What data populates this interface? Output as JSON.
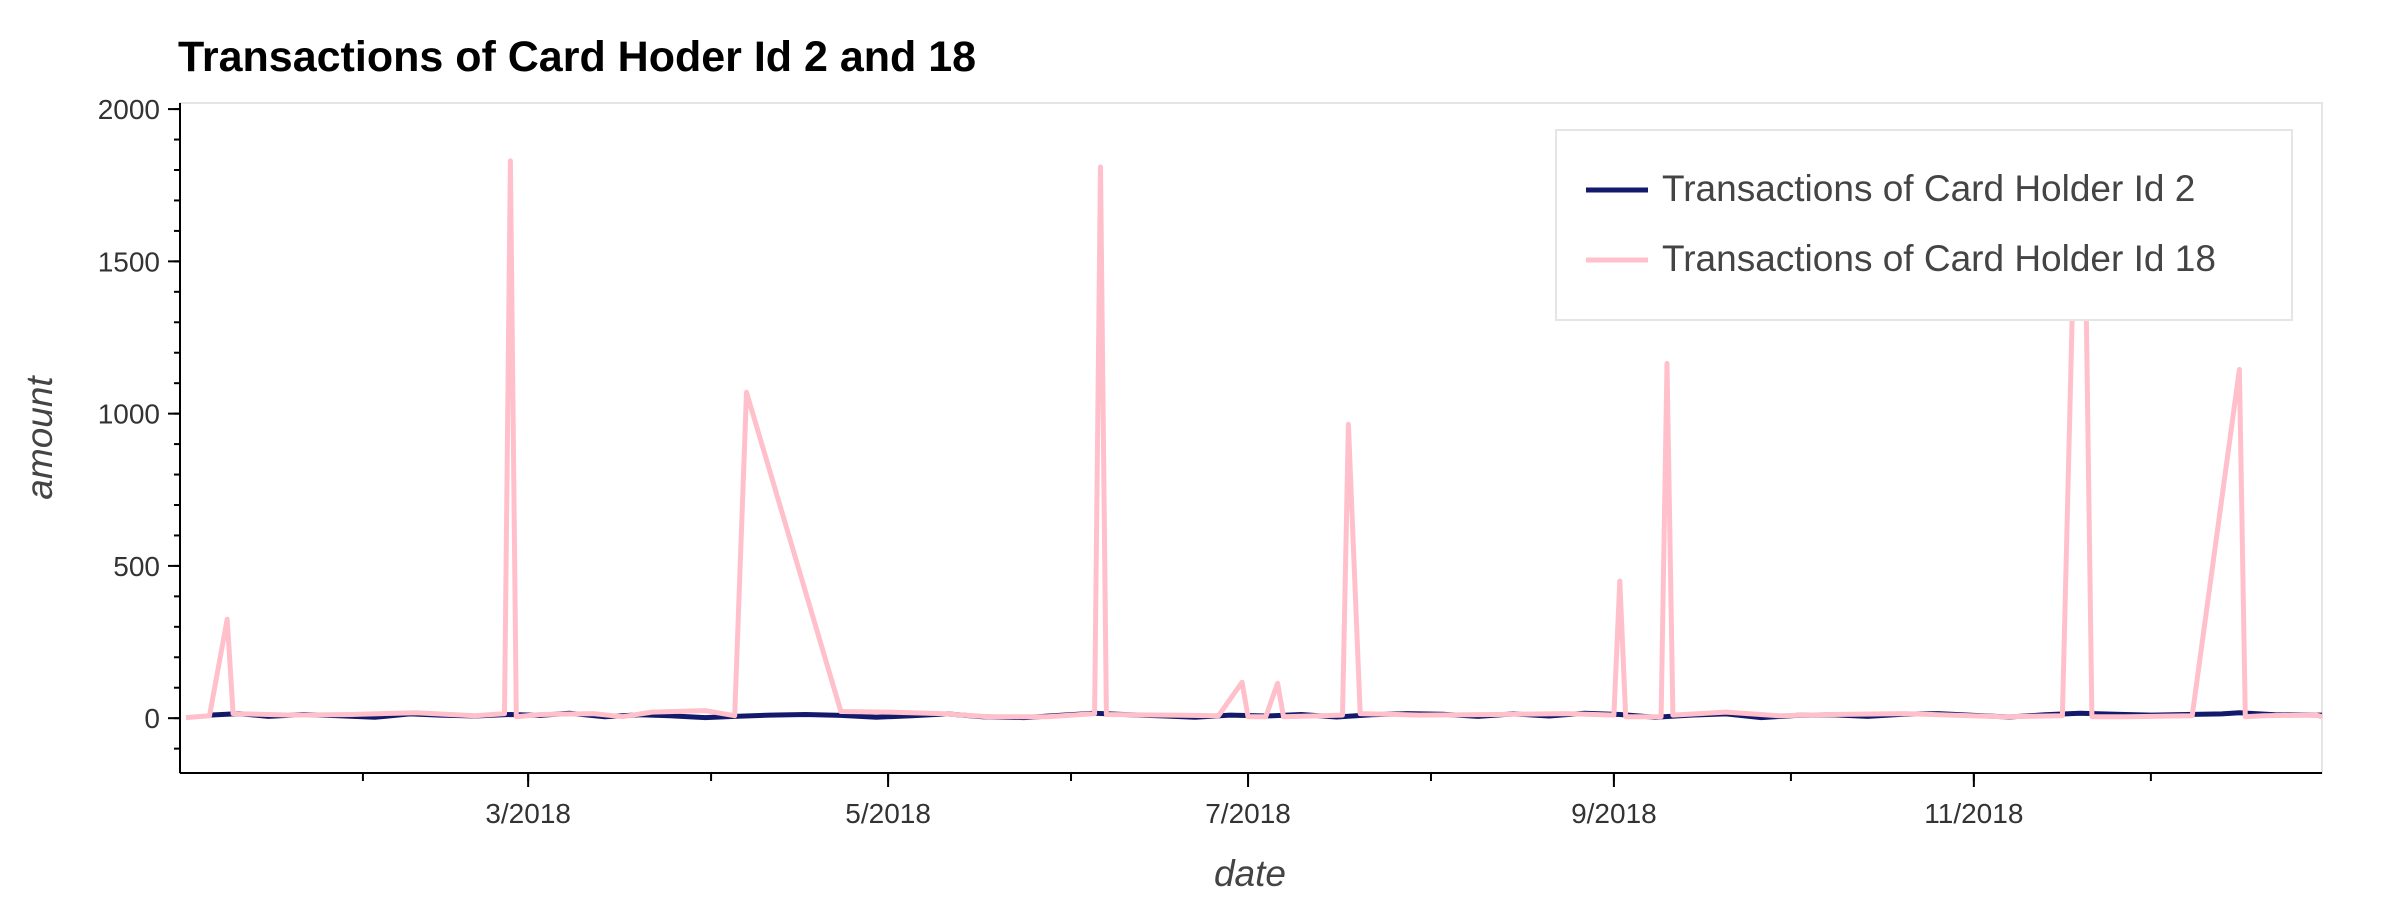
{
  "chart_data": {
    "type": "line",
    "title": "Transactions of Card Hoder Id 2 and 18",
    "xlabel": "date",
    "ylabel": "amount",
    "x_type": "datetime",
    "xlim": [
      "2018-01-01",
      "2018-12-30"
    ],
    "ylim": [
      -180,
      2020
    ],
    "y_ticks": [
      0,
      500,
      1000,
      1500,
      2000
    ],
    "y_tick_labels": [
      "0",
      "500",
      "1000",
      "1500",
      "2000"
    ],
    "x_ticks": [
      "2018-03-01",
      "2018-05-01",
      "2018-07-01",
      "2018-09-01",
      "2018-11-01"
    ],
    "x_tick_labels": [
      "3/2018",
      "5/2018",
      "7/2018",
      "9/2018",
      "11/2018"
    ],
    "grid": false,
    "legend_position": "top-right",
    "series": [
      {
        "name": "Transactions of Card Holder Id 2",
        "color": "#141a6b",
        "x": [
          "2018-01-06",
          "2018-01-11",
          "2018-01-16",
          "2018-01-22",
          "2018-01-28",
          "2018-02-03",
          "2018-02-09",
          "2018-02-14",
          "2018-02-20",
          "2018-02-26",
          "2018-03-03",
          "2018-03-08",
          "2018-03-14",
          "2018-03-20",
          "2018-03-25",
          "2018-03-31",
          "2018-04-05",
          "2018-04-11",
          "2018-04-17",
          "2018-04-23",
          "2018-04-29",
          "2018-05-05",
          "2018-05-11",
          "2018-05-17",
          "2018-05-24",
          "2018-05-30",
          "2018-06-05",
          "2018-06-11",
          "2018-06-17",
          "2018-06-22",
          "2018-06-28",
          "2018-07-04",
          "2018-07-10",
          "2018-07-16",
          "2018-07-22",
          "2018-07-28",
          "2018-08-03",
          "2018-08-09",
          "2018-08-15",
          "2018-08-21",
          "2018-08-27",
          "2018-09-02",
          "2018-09-08",
          "2018-09-14",
          "2018-09-20",
          "2018-09-26",
          "2018-10-02",
          "2018-10-08",
          "2018-10-14",
          "2018-10-20",
          "2018-10-26",
          "2018-11-01",
          "2018-11-07",
          "2018-11-13",
          "2018-11-19",
          "2018-11-25",
          "2018-12-01",
          "2018-12-07",
          "2018-12-13",
          "2018-12-16",
          "2018-12-22",
          "2018-12-30"
        ],
        "y": [
          10,
          15,
          6,
          12,
          8,
          3,
          14,
          10,
          7,
          12,
          9,
          16,
          5,
          11,
          8,
          2,
          6,
          10,
          12,
          9,
          3,
          8,
          14,
          5,
          2,
          9,
          16,
          11,
          7,
          3,
          10,
          7,
          12,
          4,
          11,
          15,
          13,
          6,
          14,
          7,
          16,
          12,
          3,
          10,
          14,
          2,
          9,
          11,
          6,
          13,
          15,
          9,
          4,
          11,
          16,
          13,
          10,
          12,
          14,
          18,
          11,
          10
        ]
      },
      {
        "name": "Transactions of Card Holder Id 18",
        "color": "#ffc0cb",
        "x": [
          "2018-01-02",
          "2018-01-06",
          "2018-01-09",
          "2018-01-10",
          "2018-01-20",
          "2018-01-30",
          "2018-02-10",
          "2018-02-20",
          "2018-02-25",
          "2018-02-26",
          "2018-02-27",
          "2018-03-03",
          "2018-03-12",
          "2018-03-17",
          "2018-03-22",
          "2018-03-31",
          "2018-04-05",
          "2018-04-07",
          "2018-04-23",
          "2018-05-01",
          "2018-05-10",
          "2018-05-18",
          "2018-05-28",
          "2018-06-05",
          "2018-06-06",
          "2018-06-07",
          "2018-06-18",
          "2018-06-26",
          "2018-06-30",
          "2018-07-01",
          "2018-07-04",
          "2018-07-06",
          "2018-07-07",
          "2018-07-17",
          "2018-07-18",
          "2018-07-20",
          "2018-07-30",
          "2018-08-12",
          "2018-08-24",
          "2018-09-01",
          "2018-09-02",
          "2018-09-03",
          "2018-09-09",
          "2018-09-10",
          "2018-09-11",
          "2018-09-20",
          "2018-09-29",
          "2018-10-08",
          "2018-10-20",
          "2018-10-28",
          "2018-11-06",
          "2018-11-16",
          "2018-11-18",
          "2018-11-20",
          "2018-11-21",
          "2018-11-27",
          "2018-12-08",
          "2018-12-16",
          "2018-12-17",
          "2018-12-20",
          "2018-12-29",
          "2018-12-30"
        ],
        "y": [
          2,
          8,
          325,
          15,
          10,
          12,
          18,
          8,
          15,
          1830,
          5,
          12,
          15,
          5,
          20,
          25,
          8,
          1070,
          22,
          20,
          15,
          5,
          5,
          15,
          1810,
          12,
          10,
          8,
          118,
          5,
          5,
          115,
          5,
          10,
          965,
          15,
          10,
          12,
          15,
          10,
          450,
          5,
          5,
          1165,
          10,
          20,
          8,
          12,
          15,
          10,
          5,
          8,
          1590,
          1400,
          5,
          5,
          8,
          1145,
          5,
          8,
          10,
          5
        ]
      }
    ]
  }
}
